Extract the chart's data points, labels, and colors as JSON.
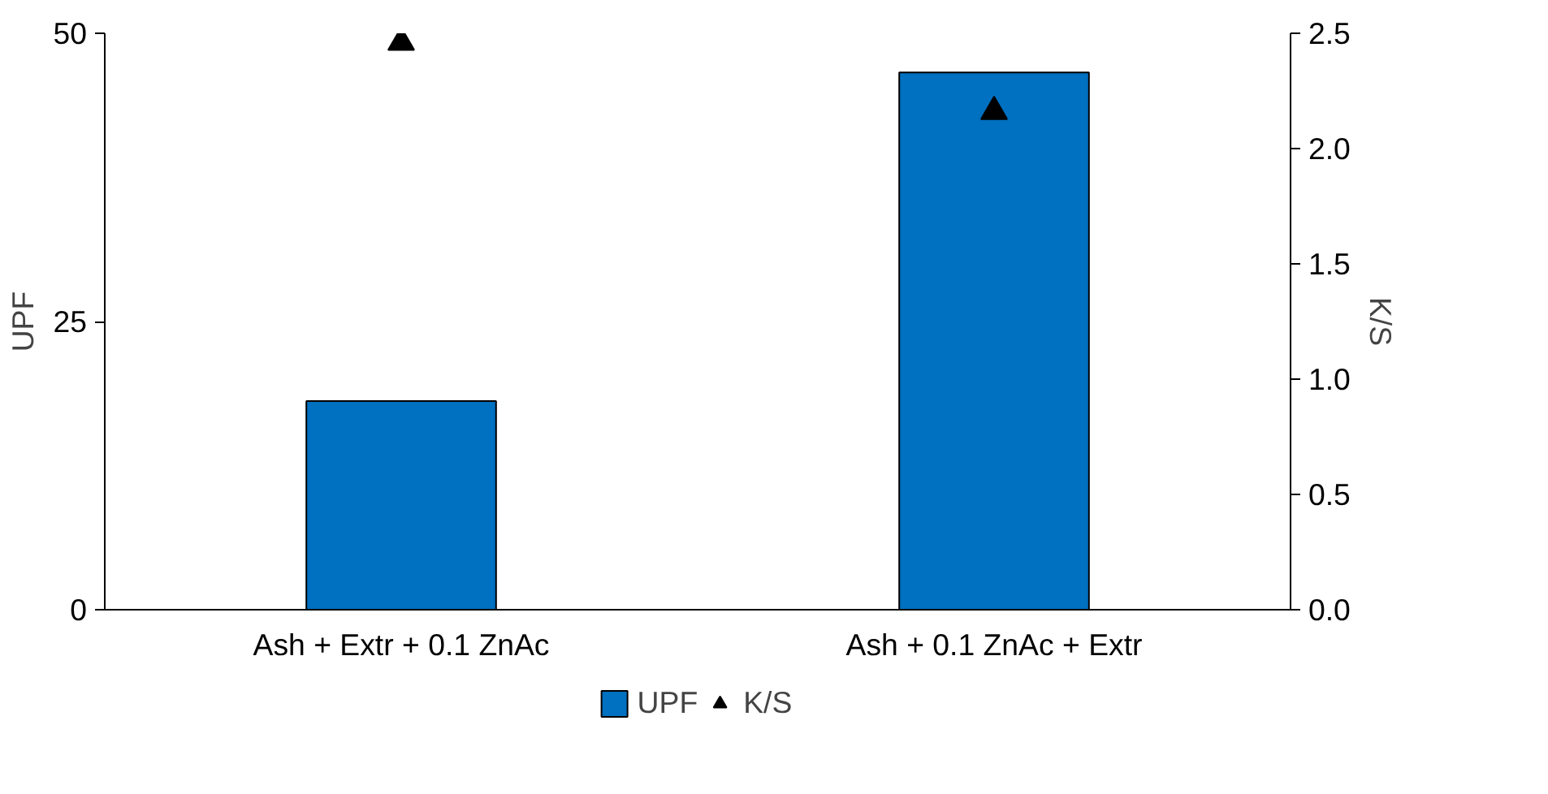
{
  "chart_data": {
    "type": "bar",
    "categories": [
      "Ash + Extr + 0.1 ZnAc",
      "Ash + 0.1 ZnAc + Extr"
    ],
    "series": [
      {
        "name": "UPF",
        "color": "#0070c0",
        "values": [
          18.1,
          46.6
        ]
      },
      {
        "name": "K/S",
        "type": "scatter",
        "axis": "y2",
        "color": "#000000",
        "marker": "triangle",
        "values": [
          2.46,
          2.16
        ]
      }
    ],
    "ylabel": "UPF",
    "y2label": "K/S",
    "ylim": [
      0,
      50
    ],
    "yticks": [
      0,
      25,
      50
    ],
    "y2lim": [
      0,
      2.5
    ],
    "y2ticks": [
      {
        "value": 0,
        "label": "0.0"
      },
      {
        "value": 0.5,
        "label": "0.5"
      },
      {
        "value": 1,
        "label": "1.0"
      },
      {
        "value": 1.5,
        "label": "1.5"
      },
      {
        "value": 2,
        "label": "2.0"
      },
      {
        "value": 2.5,
        "label": "2.5"
      }
    ],
    "grid": false,
    "legend": "bottom"
  }
}
